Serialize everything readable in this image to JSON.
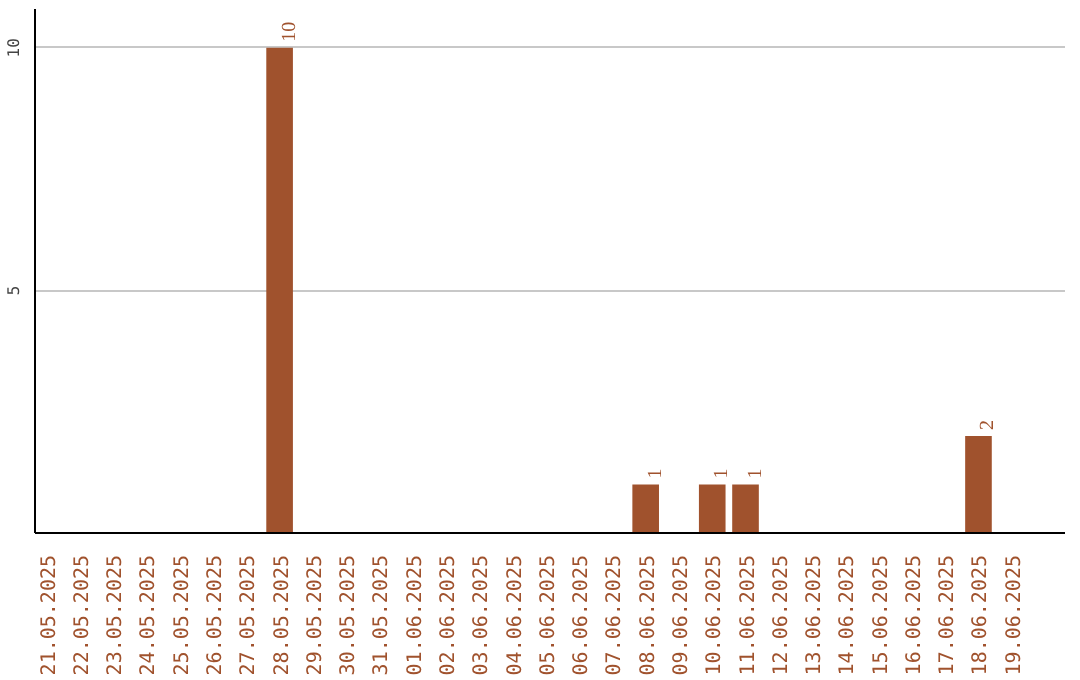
{
  "chart_data": {
    "type": "bar",
    "categories": [
      "21.05.2025",
      "22.05.2025",
      "23.05.2025",
      "24.05.2025",
      "25.05.2025",
      "26.05.2025",
      "27.05.2025",
      "28.05.2025",
      "29.05.2025",
      "30.05.2025",
      "31.05.2025",
      "01.06.2025",
      "02.06.2025",
      "03.06.2025",
      "04.06.2025",
      "05.06.2025",
      "06.06.2025",
      "07.06.2025",
      "08.06.2025",
      "09.06.2025",
      "10.06.2025",
      "11.06.2025",
      "12.06.2025",
      "13.06.2025",
      "14.06.2025",
      "15.06.2025",
      "16.06.2025",
      "17.06.2025",
      "18.06.2025",
      "19.06.2025"
    ],
    "values": [
      0,
      0,
      0,
      0,
      0,
      0,
      0,
      10,
      0,
      0,
      0,
      0,
      0,
      0,
      0,
      0,
      0,
      0,
      1,
      0,
      1,
      1,
      0,
      0,
      0,
      0,
      0,
      0,
      2,
      0
    ],
    "value_labels": [
      null,
      null,
      null,
      null,
      null,
      null,
      null,
      "10",
      null,
      null,
      null,
      null,
      null,
      null,
      null,
      null,
      null,
      null,
      "1",
      null,
      "1",
      "1",
      null,
      null,
      null,
      null,
      null,
      null,
      "2",
      null
    ],
    "color": "#a0522d",
    "ylim": [
      0,
      10.8
    ],
    "yticks": [
      5,
      10
    ],
    "grid": "y"
  }
}
